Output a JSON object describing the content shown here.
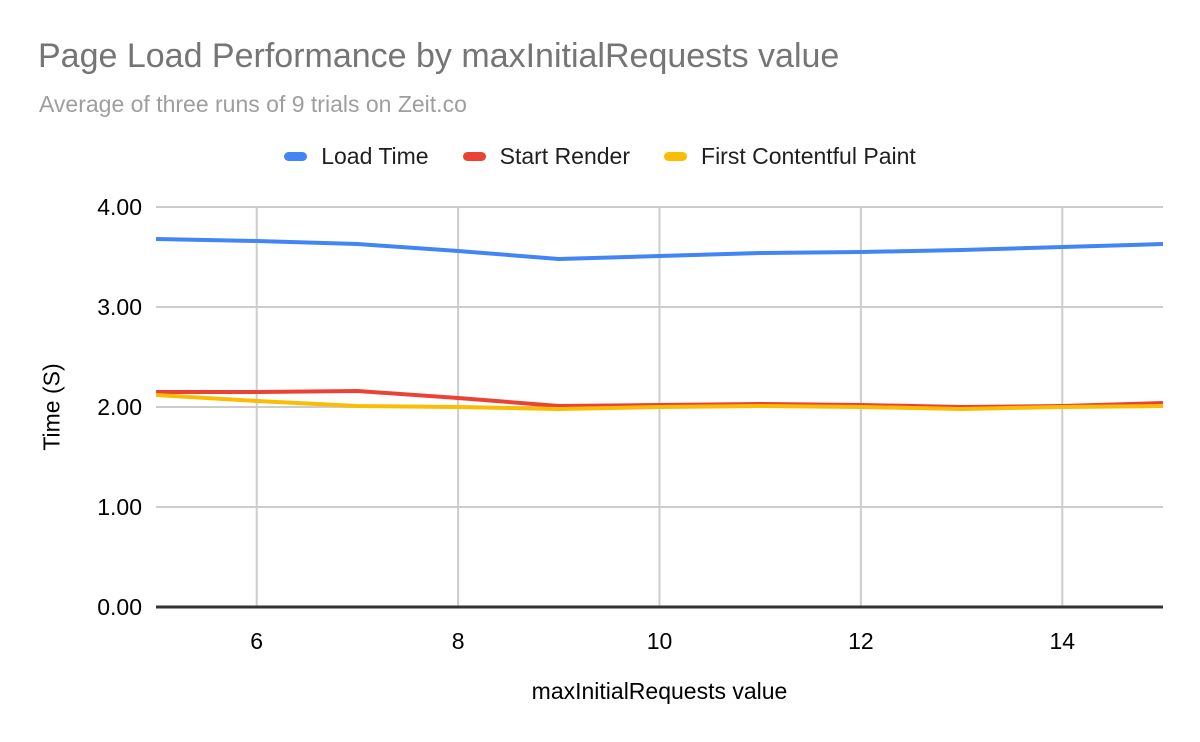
{
  "header": {
    "title": "Page Load Performance by maxInitialRequests value",
    "subtitle": "Average of three runs of 9 trials on Zeit.co",
    "title_color": "#757575",
    "subtitle_color": "#9e9e9e"
  },
  "legend": {
    "position": "top",
    "items": [
      {
        "label": "Load Time",
        "color": "#4285f4",
        "swatch_icon": "rounded-bar"
      },
      {
        "label": "Start Render",
        "color": "#ea4335",
        "swatch_icon": "rounded-bar"
      },
      {
        "label": "First Contentful Paint",
        "color": "#fbbc04",
        "swatch_icon": "rounded-bar"
      }
    ]
  },
  "chart_data": {
    "type": "line",
    "title": "Page Load Performance by maxInitialRequests value",
    "subtitle": "Average of three runs of 9 trials on Zeit.co",
    "xlabel": "maxInitialRequests value",
    "ylabel": "Time (S)",
    "xlim": [
      5,
      15
    ],
    "ylim": [
      0,
      4
    ],
    "grid": true,
    "legend_position": "top",
    "x": [
      5,
      6,
      7,
      8,
      9,
      10,
      11,
      12,
      13,
      14,
      15
    ],
    "series": [
      {
        "name": "Load Time",
        "color": "#4285f4",
        "values": [
          3.68,
          3.66,
          3.63,
          3.56,
          3.48,
          3.51,
          3.54,
          3.55,
          3.57,
          3.6,
          3.63
        ]
      },
      {
        "name": "Start Render",
        "color": "#ea4335",
        "values": [
          2.15,
          2.15,
          2.16,
          2.09,
          2.01,
          2.02,
          2.03,
          2.02,
          2.0,
          2.01,
          2.04
        ]
      },
      {
        "name": "First Contentful Paint",
        "color": "#fbbc04",
        "values": [
          2.12,
          2.06,
          2.01,
          2.0,
          1.98,
          2.0,
          2.01,
          2.0,
          1.98,
          2.0,
          2.01
        ]
      }
    ],
    "x_ticks": [
      6,
      8,
      10,
      12,
      14
    ],
    "x_tick_labels": [
      "6",
      "8",
      "10",
      "12",
      "14"
    ],
    "y_ticks": [
      0,
      1,
      2,
      3,
      4
    ],
    "y_tick_labels": [
      "0.00",
      "1.00",
      "2.00",
      "3.00",
      "4.00"
    ],
    "gridline_color": "#cccccc",
    "baseline_color": "#333333",
    "tick_label_color": "#000000"
  }
}
